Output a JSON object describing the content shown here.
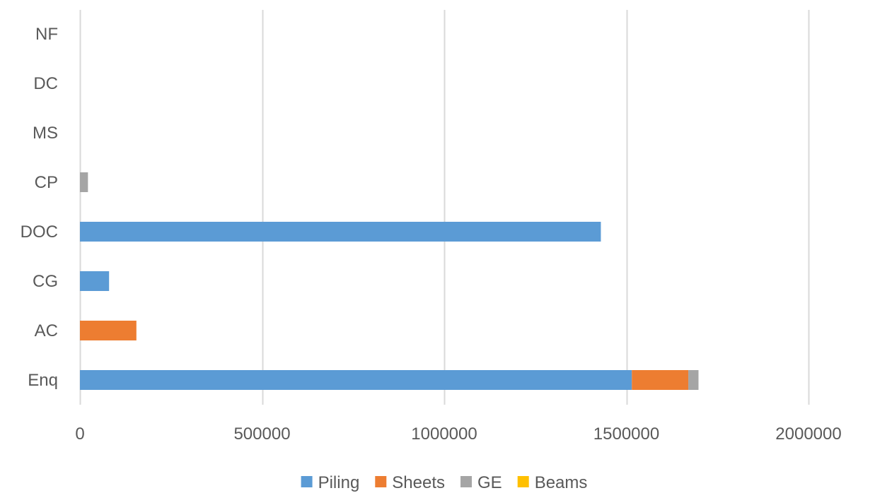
{
  "chart_data": {
    "type": "bar",
    "orientation": "horizontal",
    "stacked": true,
    "categories": [
      "Enq",
      "AC",
      "CG",
      "DOC",
      "CP",
      "MS",
      "DC",
      "NF"
    ],
    "series": [
      {
        "name": "Piling",
        "color": "#5B9BD5",
        "values": [
          1515000,
          0,
          80000,
          1430000,
          0,
          0,
          0,
          0
        ]
      },
      {
        "name": "Sheets",
        "color": "#ED7D31",
        "values": [
          155000,
          155000,
          0,
          0,
          0,
          0,
          0,
          0
        ]
      },
      {
        "name": "GE",
        "color": "#A5A5A5",
        "values": [
          28000,
          0,
          0,
          0,
          22000,
          0,
          0,
          0
        ]
      },
      {
        "name": "Beams",
        "color": "#FFC000",
        "values": [
          0,
          0,
          0,
          0,
          0,
          0,
          0,
          0
        ]
      }
    ],
    "xlim": [
      0,
      2000000
    ],
    "x_ticks": [
      0,
      500000,
      1000000,
      1500000,
      2000000
    ],
    "x_tick_labels": [
      "0",
      "500000",
      "1000000",
      "1500000",
      "2000000"
    ],
    "grid": "vertical",
    "legend": "bottom",
    "title": "",
    "xlabel": "",
    "ylabel": ""
  }
}
